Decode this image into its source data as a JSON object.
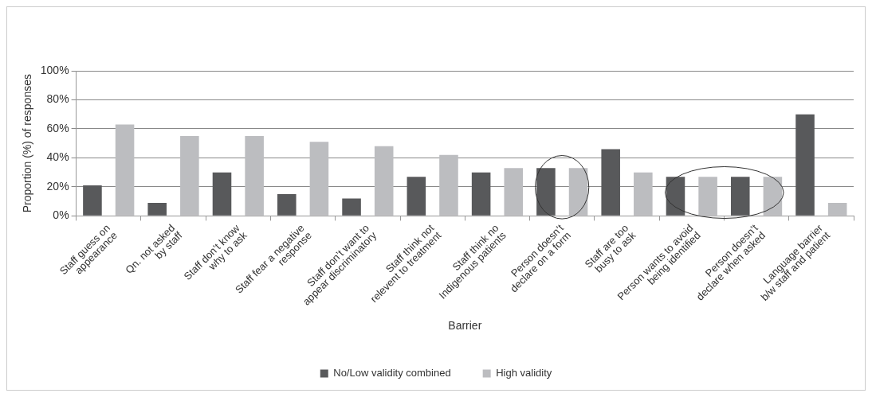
{
  "chart_data": {
    "type": "bar",
    "xlabel": "Barrier",
    "ylabel": "Proportion (%) of responses",
    "categories": [
      "Staff guess on appearance",
      "Qn. not asked by staff",
      "Staff don’t know why to ask",
      "Staff fear a negative response",
      "Staff don’t want to appear discriminatory",
      "Staff think not relevent to treatment",
      "Staff think no Indigenous patients",
      "Person doesn’t declare on a form",
      "Staff are too busy to ask",
      "Person wants to avoid being identified",
      "Person doesn’t declare when asked",
      "Language barrier b/w staff and patient"
    ],
    "series": [
      {
        "name": "No/Low validity combined",
        "color": "#58595b",
        "values": [
          21,
          9,
          30,
          15,
          12,
          27,
          30,
          33,
          46,
          27,
          27,
          70
        ]
      },
      {
        "name": "High validity",
        "color": "#bcbdc0",
        "values": [
          63,
          55,
          55,
          51,
          48,
          42,
          33,
          33,
          30,
          27,
          27,
          9
        ]
      }
    ],
    "ylim": [
      0,
      100
    ],
    "yticks": [
      {
        "value": 0,
        "label": "0%"
      },
      {
        "value": 20,
        "label": "20%"
      },
      {
        "value": 40,
        "label": "40%"
      },
      {
        "value": 60,
        "label": "60%"
      },
      {
        "value": 80,
        "label": "80%"
      },
      {
        "value": 100,
        "label": "100%"
      }
    ],
    "grid": "y",
    "legend": "bottom"
  }
}
